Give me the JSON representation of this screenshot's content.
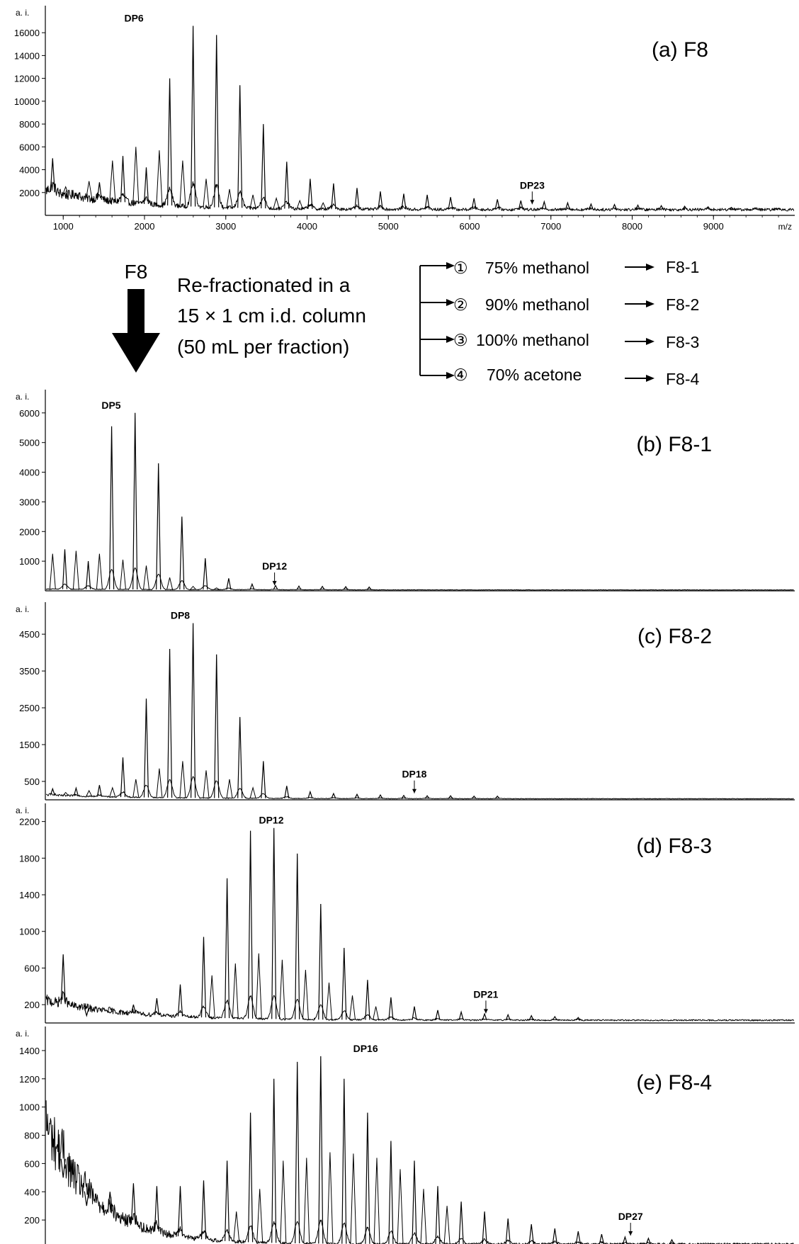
{
  "chart_data": [
    {
      "type": "line",
      "panel": "a",
      "title": "(a) F8",
      "ylabel": "a. i.",
      "xlabel": "m/z",
      "xlim": [
        780,
        10000
      ],
      "ylim": [
        0,
        17500
      ],
      "x_ticks": [
        "1000",
        "2000",
        "3000",
        "4000",
        "5000",
        "6000",
        "7000",
        "8000",
        "9000"
      ],
      "y_ticks": [
        "2000",
        "4000",
        "6000",
        "8000",
        "10000",
        "12000",
        "14000",
        "16000"
      ],
      "y_tick_values": [
        2000,
        4000,
        6000,
        8000,
        10000,
        12000,
        14000,
        16000
      ],
      "baseline": {
        "start": 2200,
        "decay": 1000,
        "floor": 500
      },
      "main_peaks": {
        "first_mz": 870,
        "spacing": 288,
        "count": 32,
        "heights": [
          5000,
          1800,
          2900,
          5200,
          4200,
          12000,
          16600,
          15800,
          11400,
          8000,
          4700,
          3200,
          2800,
          2400,
          2100,
          1900,
          1800,
          1600,
          1500,
          1400,
          1300,
          1200,
          1100,
          1000,
          950,
          900,
          850,
          800,
          750,
          700,
          650,
          600
        ]
      },
      "side_peaks": {
        "first_mz": 1030,
        "spacing": 288,
        "count": 12,
        "heights": [
          2500,
          3000,
          4800,
          6000,
          5700,
          4800,
          3200,
          2300,
          1800,
          1500,
          1300,
          1100
        ]
      },
      "annotations": [
        {
          "label": "DP6",
          "x": 1870,
          "y": 16600,
          "arrow": false
        },
        {
          "label": "DP23",
          "x": 6770,
          "y": 850,
          "arrow": true
        }
      ]
    },
    {
      "type": "line",
      "panel": "b",
      "title": "(b) F8-1",
      "ylabel": "a. i.",
      "xlim": [
        780,
        10000
      ],
      "ylim": [
        0,
        6450
      ],
      "x_ticks": [],
      "y_ticks": [
        "1000",
        "2000",
        "3000",
        "4000",
        "5000",
        "6000"
      ],
      "y_tick_values": [
        1000,
        2000,
        3000,
        4000,
        5000,
        6000
      ],
      "baseline": {
        "start": 60,
        "decay": 2000,
        "floor": 30
      },
      "main_peaks": {
        "first_mz": 1020,
        "spacing": 288,
        "count": 14,
        "heights": [
          1400,
          1000,
          5550,
          6000,
          4300,
          2500,
          1100,
          420,
          230,
          180,
          160,
          150,
          140,
          130
        ]
      },
      "side_peaks": {
        "first_mz": 870,
        "spacing": 288,
        "count": 8,
        "heights": [
          1250,
          1350,
          1250,
          1050,
          850,
          450,
          150,
          100
        ]
      },
      "annotations": [
        {
          "label": "DP5",
          "x": 1590,
          "y": 6000,
          "arrow": false
        },
        {
          "label": "DP12",
          "x": 3600,
          "y": 140,
          "arrow": true
        }
      ]
    },
    {
      "type": "line",
      "panel": "c",
      "title": "(c) F8-2",
      "ylabel": "a. i.",
      "xlim": [
        780,
        10000
      ],
      "ylim": [
        0,
        5100
      ],
      "x_ticks": [],
      "y_ticks": [
        "500",
        "1500",
        "2500",
        "3500",
        "4500"
      ],
      "y_tick_values": [
        500,
        1500,
        2500,
        3500,
        4500
      ],
      "baseline": {
        "start": 130,
        "decay": 1200,
        "floor": 30
      },
      "main_peaks": {
        "first_mz": 870,
        "spacing": 288,
        "count": 20,
        "heights": [
          300,
          320,
          400,
          1150,
          2750,
          4100,
          4800,
          3950,
          2250,
          1050,
          380,
          220,
          170,
          150,
          130,
          120,
          110,
          110,
          100,
          100
        ]
      },
      "side_peaks": {
        "first_mz": 1030,
        "spacing": 288,
        "count": 9,
        "heights": [
          200,
          250,
          330,
          560,
          850,
          1050,
          800,
          560,
          330
        ]
      },
      "annotations": [
        {
          "label": "DP8",
          "x": 2440,
          "y": 4800,
          "arrow": false
        },
        {
          "label": "DP18",
          "x": 5320,
          "y": 140,
          "arrow": true
        }
      ]
    },
    {
      "type": "line",
      "panel": "d",
      "title": "(d) F8-3",
      "ylabel": "a. i.",
      "xlim": [
        780,
        10000
      ],
      "ylim": [
        0,
        2290
      ],
      "x_ticks": [],
      "y_ticks": [
        "200",
        "600",
        "1000",
        "1400",
        "1800",
        "2200"
      ],
      "y_tick_values": [
        200,
        600,
        1000,
        1400,
        1800,
        2200
      ],
      "baseline": {
        "start": 250,
        "decay": 1000,
        "floor": 30
      },
      "main_peaks": {
        "first_mz": 1000,
        "spacing": 288,
        "count": 23,
        "heights": [
          750,
          80,
          110,
          200,
          270,
          420,
          940,
          1580,
          2100,
          2130,
          1850,
          1300,
          820,
          470,
          280,
          180,
          140,
          120,
          100,
          90,
          80,
          70,
          60
        ]
      },
      "side_peaks": {
        "first_mz": 2830,
        "spacing": 288,
        "count": 8,
        "heights": [
          520,
          650,
          760,
          690,
          580,
          440,
          300,
          180
        ]
      },
      "annotations": [
        {
          "label": "DP12",
          "x": 3560,
          "y": 2130,
          "arrow": false
        },
        {
          "label": "DP21",
          "x": 6200,
          "y": 90,
          "arrow": true
        }
      ]
    },
    {
      "type": "line",
      "panel": "e",
      "title": "(e) F8-4",
      "ylabel": "a. i.",
      "xlabel": "m/z",
      "xlim": [
        780,
        10000
      ],
      "ylim": [
        0,
        1500
      ],
      "x_ticks": [
        "1000",
        "2000",
        "3000",
        "4000",
        "5000",
        "6000",
        "7000",
        "8000",
        "9000"
      ],
      "y_ticks": [
        "200",
        "400",
        "600",
        "800",
        "1000",
        "1200",
        "1400"
      ],
      "y_tick_values": [
        200,
        400,
        600,
        800,
        1000,
        1200,
        1400
      ],
      "baseline": {
        "start": 900,
        "decay": 600,
        "floor": 30
      },
      "main_peaks": {
        "first_mz": 1000,
        "spacing": 288,
        "count": 27,
        "heights": [
          500,
          300,
          400,
          460,
          440,
          440,
          480,
          620,
          960,
          1200,
          1320,
          1360,
          1200,
          960,
          760,
          620,
          440,
          330,
          260,
          210,
          170,
          140,
          120,
          100,
          80,
          70,
          60
        ]
      },
      "side_peaks": {
        "first_mz": 3130,
        "spacing": 288,
        "count": 10,
        "heights": [
          260,
          420,
          620,
          640,
          680,
          670,
          640,
          560,
          420,
          300
        ]
      },
      "annotations": [
        {
          "label": "DP16",
          "x": 4720,
          "y": 1360,
          "arrow": false
        },
        {
          "label": "DP27",
          "x": 7980,
          "y": 80,
          "arrow": true
        }
      ]
    }
  ],
  "scheme": {
    "source_label": "F8",
    "description_lines": [
      "Re-fractionated in a",
      "15 × 1 cm i.d. column",
      "(50 mL per fraction)"
    ],
    "fractions": [
      {
        "marker": "①",
        "eluent": "75% methanol",
        "product": "F8-1"
      },
      {
        "marker": "②",
        "eluent": "90% methanol",
        "product": "F8-2"
      },
      {
        "marker": "③",
        "eluent": "100% methanol",
        "product": "F8-3"
      },
      {
        "marker": "④",
        "eluent": "70% acetone",
        "product": "F8-4"
      }
    ]
  }
}
